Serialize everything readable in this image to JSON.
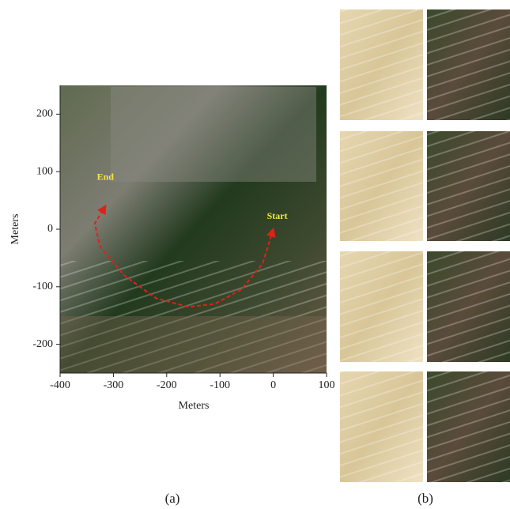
{
  "chart_data": {
    "type": "line",
    "x_label": "Meters",
    "y_label": "Meters",
    "xlim": [
      -400,
      100
    ],
    "ylim": [
      -250,
      250
    ],
    "xticks": [
      -400,
      -300,
      -200,
      -100,
      0,
      100
    ],
    "yticks": [
      -200,
      -100,
      0,
      100,
      200
    ],
    "series": [
      {
        "color": "#e0201a",
        "x": [
          0,
          -20,
          -60,
          -110,
          -160,
          -220,
          -280,
          -325,
          -335,
          -315
        ],
        "y": [
          0,
          -60,
          -105,
          -130,
          -135,
          -120,
          -80,
          -30,
          10,
          40
        ]
      }
    ],
    "start_label": "Start",
    "end_label": "End",
    "panel_labels": [
      "(a)",
      "(b)"
    ]
  }
}
